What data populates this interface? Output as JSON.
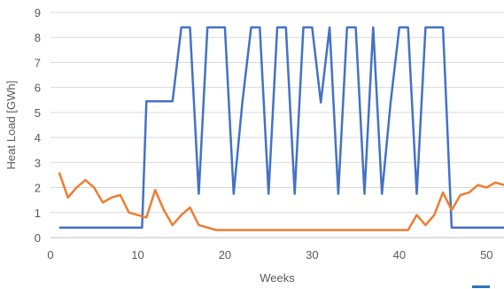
{
  "chart_data": {
    "type": "line",
    "title": "",
    "xlabel": "Weeks",
    "ylabel": "Heat Load [GWh]",
    "xlim": [
      0,
      52
    ],
    "ylim": [
      0,
      9
    ],
    "xticks": [
      0,
      10,
      20,
      30,
      40,
      50
    ],
    "yticks": [
      0,
      1,
      2,
      3,
      4,
      5,
      6,
      7,
      8,
      9
    ],
    "grid": "horizontal",
    "legend": "none",
    "series": [
      {
        "color": "#4472C4",
        "points": [
          [
            1,
            0.4
          ],
          [
            10,
            0.4
          ],
          [
            10.5,
            0.4
          ],
          [
            11,
            5.45
          ],
          [
            14,
            5.45
          ],
          [
            15,
            8.4
          ],
          [
            16,
            8.4
          ],
          [
            17,
            1.75
          ],
          [
            18,
            8.4
          ],
          [
            20,
            8.4
          ],
          [
            21,
            1.75
          ],
          [
            22,
            5.4
          ],
          [
            23,
            8.4
          ],
          [
            24,
            8.4
          ],
          [
            25,
            1.75
          ],
          [
            26,
            8.4
          ],
          [
            27,
            8.4
          ],
          [
            28,
            1.75
          ],
          [
            29,
            8.4
          ],
          [
            30,
            8.4
          ],
          [
            31,
            5.4
          ],
          [
            32,
            8.4
          ],
          [
            33,
            1.75
          ],
          [
            34,
            8.4
          ],
          [
            35,
            8.4
          ],
          [
            36,
            1.75
          ],
          [
            37,
            8.4
          ],
          [
            38,
            1.75
          ],
          [
            39,
            5.4
          ],
          [
            40,
            8.4
          ],
          [
            41,
            8.4
          ],
          [
            42,
            1.75
          ],
          [
            43,
            8.4
          ],
          [
            45,
            8.4
          ],
          [
            46,
            0.4
          ],
          [
            52,
            0.4
          ]
        ]
      },
      {
        "color": "#ED7D31",
        "points": [
          [
            1,
            2.6
          ],
          [
            2,
            1.6
          ],
          [
            3,
            2.0
          ],
          [
            4,
            2.3
          ],
          [
            5,
            2.0
          ],
          [
            6,
            1.4
          ],
          [
            7,
            1.6
          ],
          [
            8,
            1.7
          ],
          [
            9,
            1.0
          ],
          [
            10,
            0.9
          ],
          [
            11,
            0.8
          ],
          [
            12,
            1.9
          ],
          [
            13,
            1.1
          ],
          [
            14,
            0.5
          ],
          [
            15,
            0.9
          ],
          [
            16,
            1.2
          ],
          [
            17,
            0.5
          ],
          [
            18,
            0.4
          ],
          [
            19,
            0.3
          ],
          [
            20,
            0.3
          ],
          [
            21,
            0.3
          ],
          [
            22,
            0.3
          ],
          [
            23,
            0.3
          ],
          [
            24,
            0.3
          ],
          [
            25,
            0.3
          ],
          [
            26,
            0.3
          ],
          [
            27,
            0.3
          ],
          [
            28,
            0.3
          ],
          [
            29,
            0.3
          ],
          [
            30,
            0.3
          ],
          [
            31,
            0.3
          ],
          [
            32,
            0.3
          ],
          [
            33,
            0.3
          ],
          [
            34,
            0.3
          ],
          [
            35,
            0.3
          ],
          [
            36,
            0.3
          ],
          [
            37,
            0.3
          ],
          [
            38,
            0.3
          ],
          [
            39,
            0.3
          ],
          [
            40,
            0.3
          ],
          [
            41,
            0.3
          ],
          [
            42,
            0.9
          ],
          [
            43,
            0.5
          ],
          [
            44,
            0.9
          ],
          [
            45,
            1.8
          ],
          [
            46,
            1.1
          ],
          [
            47,
            1.7
          ],
          [
            48,
            1.8
          ],
          [
            49,
            2.1
          ],
          [
            50,
            2.0
          ],
          [
            51,
            2.2
          ],
          [
            52,
            2.1
          ]
        ]
      }
    ]
  }
}
